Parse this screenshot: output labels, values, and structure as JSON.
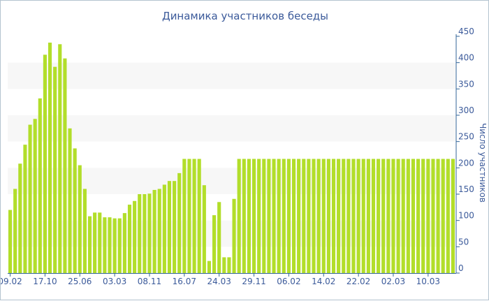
{
  "chart_data": {
    "type": "bar",
    "title": "Динамика участников беседы",
    "ylabel": "Число участников",
    "xlabel": "",
    "ylim": [
      0,
      450
    ],
    "y_ticks": [
      0,
      50,
      100,
      150,
      200,
      250,
      300,
      350,
      400,
      450
    ],
    "y_axis_side": "right",
    "grid": "alternating horizontal bands",
    "x_tick_labels": [
      {
        "index": 0,
        "label": "09.02"
      },
      {
        "index": 7,
        "label": "17.10"
      },
      {
        "index": 14,
        "label": "25.06"
      },
      {
        "index": 21,
        "label": "03.03"
      },
      {
        "index": 28,
        "label": "08.11"
      },
      {
        "index": 35,
        "label": "16.07"
      },
      {
        "index": 42,
        "label": "24.03"
      },
      {
        "index": 49,
        "label": "29.11"
      },
      {
        "index": 56,
        "label": "06.02"
      },
      {
        "index": 63,
        "label": "14.02"
      },
      {
        "index": 70,
        "label": "22.02"
      },
      {
        "index": 77,
        "label": "02.03"
      },
      {
        "index": 84,
        "label": "10.03"
      }
    ],
    "values": [
      120,
      160,
      208,
      244,
      282,
      293,
      332,
      415,
      438,
      392,
      435,
      408,
      275,
      237,
      205,
      160,
      108,
      115,
      115,
      106,
      106,
      104,
      104,
      114,
      130,
      137,
      150,
      150,
      151,
      158,
      160,
      168,
      175,
      175,
      190,
      217,
      217,
      217,
      217,
      167,
      23,
      110,
      135,
      30,
      30,
      141,
      217,
      217,
      217,
      217,
      217,
      217,
      217,
      217,
      217,
      217,
      217,
      217,
      217,
      217,
      217,
      217,
      217,
      217,
      217,
      217,
      217,
      217,
      217,
      217,
      217,
      217,
      217,
      217,
      217,
      217,
      217,
      217,
      217,
      217,
      217,
      217,
      217,
      217,
      217,
      217,
      217,
      217,
      217,
      217
    ],
    "colors": {
      "bar": "#b2de2a",
      "band": "#f7f7f7",
      "text": "#3b5a9a",
      "axis": "#33669a",
      "frame": "#b4c3cf"
    }
  }
}
